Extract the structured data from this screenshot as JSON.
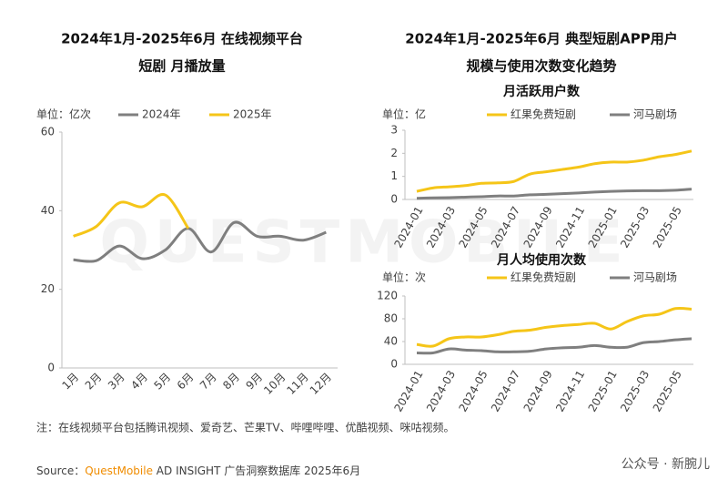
{
  "chart_data": [
    {
      "type": "line",
      "title": [
        "2024年1月-2025年6月 在线视频平台",
        "短剧 月播放量"
      ],
      "unit": "单位：亿次",
      "categories": [
        "1月",
        "2月",
        "3月",
        "4月",
        "5月",
        "6月",
        "7月",
        "8月",
        "9月",
        "10月",
        "11月",
        "12月"
      ],
      "series": [
        {
          "name": "2024年",
          "color": "#7f7f7f",
          "values": [
            27.5,
            27.3,
            31,
            27.8,
            30,
            35.5,
            29.5,
            37,
            33.5,
            33.5,
            32.5,
            34.5
          ]
        },
        {
          "name": "2025年",
          "color": "#f5c518",
          "values": [
            33.5,
            36,
            42,
            41,
            44,
            35.5,
            null,
            null,
            null,
            null,
            null,
            null
          ]
        }
      ],
      "ylim": [
        0,
        60
      ],
      "yticks": [
        0,
        20,
        40,
        60
      ],
      "grid": false
    },
    {
      "type": "line",
      "title": [
        "2024年1月-2025年6月 典型短剧APP用户",
        "规模与使用次数变化趋势"
      ],
      "subtitle": "月活跃用户数",
      "unit": "单位：亿",
      "categories": [
        "2024-01",
        null,
        "2024-03",
        null,
        "2024-05",
        null,
        "2024-07",
        null,
        "2024-09",
        null,
        "2024-11",
        null,
        "2025-01",
        null,
        "2025-03",
        null,
        "2025-05",
        null
      ],
      "series": [
        {
          "name": "红果免费短剧",
          "color": "#f5c518",
          "values": [
            0.35,
            0.5,
            0.55,
            0.6,
            0.7,
            0.72,
            0.78,
            1.1,
            1.2,
            1.3,
            1.4,
            1.55,
            1.62,
            1.62,
            1.7,
            1.85,
            1.95,
            2.1
          ]
        },
        {
          "name": "河马剧场",
          "color": "#7f7f7f",
          "values": [
            0.05,
            0.07,
            0.08,
            0.1,
            0.12,
            0.15,
            0.15,
            0.2,
            0.22,
            0.25,
            0.28,
            0.32,
            0.35,
            0.37,
            0.38,
            0.38,
            0.4,
            0.45
          ]
        }
      ],
      "ylim": [
        0,
        3
      ],
      "yticks": [
        0,
        1,
        2,
        3
      ],
      "grid": false
    },
    {
      "type": "line",
      "subtitle": "月人均使用次数",
      "unit": "单位：次",
      "categories": [
        "2024-01",
        null,
        "2024-03",
        null,
        "2024-05",
        null,
        "2024-07",
        null,
        "2024-09",
        null,
        "2024-11",
        null,
        "2025-01",
        null,
        "2025-03",
        null,
        "2025-05",
        null
      ],
      "series": [
        {
          "name": "红果免费短剧",
          "color": "#f5c518",
          "values": [
            35,
            32,
            45,
            48,
            48,
            52,
            58,
            60,
            65,
            68,
            70,
            72,
            62,
            75,
            85,
            88,
            98,
            97
          ]
        },
        {
          "name": "河马剧场",
          "color": "#7f7f7f",
          "values": [
            20,
            20,
            27,
            25,
            24,
            22,
            22,
            23,
            27,
            29,
            30,
            33,
            30,
            30,
            38,
            40,
            43,
            45
          ]
        }
      ],
      "ylim": [
        0,
        120
      ],
      "yticks": [
        0,
        40,
        80,
        120
      ],
      "grid": false
    }
  ],
  "note": "注：在线视频平台包括腾讯视频、爱奇艺、芒果TV、哔哩哔哩、优酷视频、咪咕视频。",
  "source": {
    "prefix": "Source：",
    "brand": "QuestMobile",
    "suffix": " AD INSIGHT 广告洞察数据库 2025年6月"
  },
  "watermark": "公众号 · 新腕儿",
  "background_mark": "QUESTMOBILE"
}
